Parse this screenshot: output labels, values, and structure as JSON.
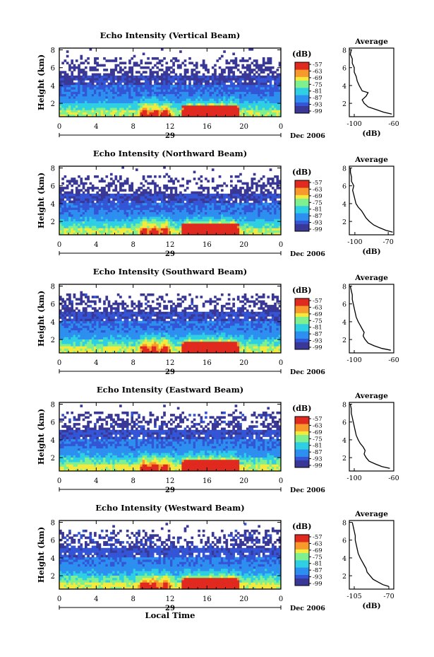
{
  "figure": {
    "time_label": "Local Time",
    "date_label": "Dec 2006",
    "day_label": "29",
    "unit_label": "(dB)",
    "colorbar_ticks": [
      "-57",
      "-63",
      "-69",
      "-75",
      "-81",
      "-87",
      "-93",
      "-99"
    ],
    "colors": {
      "colormap": [
        "#3a3896",
        "#3355d6",
        "#2d8fef",
        "#2fcfe3",
        "#7ff08f",
        "#f4ea3e",
        "#f79a2b",
        "#e0291f"
      ],
      "missing": "#ffffff"
    }
  },
  "chart_data": [
    {
      "type": "heatmap",
      "title": "Echo Intensity (Vertical Beam)",
      "xlabel": "",
      "ylabel": "Height (km)",
      "xlim": [
        0,
        24
      ],
      "ylim": [
        0.5,
        8.2
      ],
      "x_ticks": [
        "0",
        "4",
        "8",
        "12",
        "16",
        "20",
        "0"
      ],
      "y_ticks": [
        "2",
        "4",
        "6",
        "8"
      ],
      "colorbar": {
        "label": "(dB)",
        "range": [
          -99,
          -57
        ],
        "ticks": [
          "-57",
          "-63",
          "-69",
          "-75",
          "-81",
          "-87",
          "-93",
          "-99"
        ]
      },
      "average_profile": {
        "type": "line",
        "title": "Average",
        "xlabel": "(dB)",
        "xlim": [
          -105,
          -60
        ],
        "x_ticks": [
          "-100",
          "-60"
        ],
        "y_ticks": [
          "2",
          "4",
          "6",
          "8"
        ],
        "ylim": [
          0.5,
          8.2
        ],
        "height_km": [
          0.8,
          1.0,
          1.3,
          1.6,
          2.0,
          2.4,
          2.8,
          3.2,
          3.4,
          3.6,
          4.0,
          4.5,
          5.0,
          5.5,
          6.0,
          6.5,
          7.0,
          7.5,
          8.0
        ],
        "values_db": [
          -62,
          -70,
          -78,
          -86,
          -90,
          -92,
          -88,
          -86,
          -92,
          -93,
          -95,
          -97,
          -98,
          -100,
          -100,
          -102,
          -102,
          -104,
          -103
        ]
      }
    },
    {
      "type": "heatmap",
      "title": "Echo Intensity (Northward Beam)",
      "xlabel": "",
      "ylabel": "Height (km)",
      "xlim": [
        0,
        24
      ],
      "ylim": [
        0.5,
        8.2
      ],
      "x_ticks": [
        "0",
        "4",
        "8",
        "12",
        "16",
        "20",
        "0"
      ],
      "y_ticks": [
        "2",
        "4",
        "6",
        "8"
      ],
      "colorbar": {
        "label": "(dB)",
        "range": [
          -99,
          -57
        ],
        "ticks": [
          "-57",
          "-63",
          "-69",
          "-75",
          "-81",
          "-87",
          "-93",
          "-99"
        ]
      },
      "average_profile": {
        "type": "line",
        "title": "Average",
        "xlabel": "(dB)",
        "xlim": [
          -105,
          -65
        ],
        "x_ticks": [
          "-100",
          "-70"
        ],
        "y_ticks": [
          "2",
          "4",
          "6",
          "8"
        ],
        "ylim": [
          0.5,
          8.2
        ],
        "height_km": [
          0.8,
          1.0,
          1.3,
          1.6,
          2.0,
          2.4,
          2.8,
          3.2,
          3.6,
          4.0,
          4.5,
          5.0,
          5.5,
          6.0,
          6.5,
          7.0,
          7.5,
          8.0
        ],
        "values_db": [
          -66,
          -72,
          -78,
          -83,
          -87,
          -90,
          -92,
          -94,
          -97,
          -99,
          -100,
          -101,
          -102,
          -101,
          -103,
          -103,
          -104,
          -104
        ]
      }
    },
    {
      "type": "heatmap",
      "title": "Echo Intensity (Southward Beam)",
      "xlabel": "",
      "ylabel": "Height (km)",
      "xlim": [
        0,
        24
      ],
      "ylim": [
        0.5,
        8.2
      ],
      "x_ticks": [
        "0",
        "4",
        "8",
        "12",
        "16",
        "20",
        "0"
      ],
      "y_ticks": [
        "2",
        "4",
        "6",
        "8"
      ],
      "colorbar": {
        "label": "(dB)",
        "range": [
          -99,
          -57
        ],
        "ticks": [
          "-57",
          "-63",
          "-69",
          "-75",
          "-81",
          "-87",
          "-93",
          "-99"
        ]
      },
      "average_profile": {
        "type": "line",
        "title": "Average",
        "xlabel": "",
        "xlim": [
          -105,
          -60
        ],
        "x_ticks": [
          "-100",
          "-60"
        ],
        "y_ticks": [
          "2",
          "4",
          "6",
          "8"
        ],
        "ylim": [
          0.5,
          8.2
        ],
        "height_km": [
          0.8,
          1.0,
          1.3,
          1.6,
          2.0,
          2.4,
          2.8,
          3.2,
          3.6,
          4.0,
          4.5,
          5.0,
          5.5,
          6.0,
          6.5,
          7.0,
          7.5,
          8.0
        ],
        "values_db": [
          -63,
          -72,
          -80,
          -86,
          -89,
          -91,
          -90,
          -92,
          -94,
          -96,
          -98,
          -99,
          -100,
          -101,
          -102,
          -102,
          -103,
          -104
        ]
      }
    },
    {
      "type": "heatmap",
      "title": "Echo Intensity (Eastward Beam)",
      "xlabel": "",
      "ylabel": "Height (km)",
      "xlim": [
        0,
        24
      ],
      "ylim": [
        0.5,
        8.2
      ],
      "x_ticks": [
        "0",
        "4",
        "8",
        "12",
        "16",
        "20",
        "0"
      ],
      "y_ticks": [
        "2",
        "4",
        "6",
        "8"
      ],
      "colorbar": {
        "label": "(dB)",
        "range": [
          -99,
          -57
        ],
        "ticks": [
          "-57",
          "-63",
          "-69",
          "-75",
          "-81",
          "-87",
          "-93",
          "-99"
        ]
      },
      "average_profile": {
        "type": "line",
        "title": "Average",
        "xlabel": "",
        "xlim": [
          -105,
          -60
        ],
        "x_ticks": [
          "-100",
          "-60"
        ],
        "y_ticks": [
          "2",
          "4",
          "6",
          "8"
        ],
        "ylim": [
          0.5,
          8.2
        ],
        "height_km": [
          0.8,
          1.0,
          1.3,
          1.6,
          2.0,
          2.4,
          2.8,
          3.2,
          3.6,
          4.0,
          4.5,
          5.0,
          5.5,
          6.0,
          6.5,
          7.0,
          7.5,
          8.0
        ],
        "values_db": [
          -64,
          -72,
          -79,
          -85,
          -88,
          -90,
          -89,
          -91,
          -94,
          -96,
          -98,
          -99,
          -100,
          -101,
          -102,
          -103,
          -103,
          -104
        ]
      }
    },
    {
      "type": "heatmap",
      "title": "Echo Intensity (Westward Beam)",
      "xlabel": "Local Time",
      "ylabel": "Height (km)",
      "xlim": [
        0,
        24
      ],
      "ylim": [
        0.5,
        8.2
      ],
      "x_ticks": [
        "0",
        "4",
        "8",
        "12",
        "16",
        "20",
        "0"
      ],
      "y_ticks": [
        "2",
        "4",
        "6",
        "8"
      ],
      "colorbar": {
        "label": "(dB)",
        "range": [
          -99,
          -57
        ],
        "ticks": [
          "-57",
          "-63",
          "-69",
          "-75",
          "-81",
          "-87",
          "-93",
          "-99"
        ]
      },
      "average_profile": {
        "type": "line",
        "title": "Average",
        "xlabel": "(dB)",
        "xlim": [
          -110,
          -65
        ],
        "x_ticks": [
          "-105",
          "-70"
        ],
        "y_ticks": [
          "2",
          "4",
          "6",
          "8"
        ],
        "ylim": [
          0.5,
          8.2
        ],
        "height_km": [
          0.8,
          1.0,
          1.3,
          1.6,
          2.0,
          2.4,
          2.8,
          3.2,
          3.6,
          4.0,
          4.5,
          5.0,
          5.5,
          6.0,
          6.5,
          7.0,
          7.5,
          8.0
        ],
        "values_db": [
          -70,
          -76,
          -81,
          -86,
          -89,
          -92,
          -93,
          -95,
          -97,
          -99,
          -101,
          -102,
          -103,
          -104,
          -104,
          -105,
          -106,
          -107
        ]
      }
    }
  ]
}
